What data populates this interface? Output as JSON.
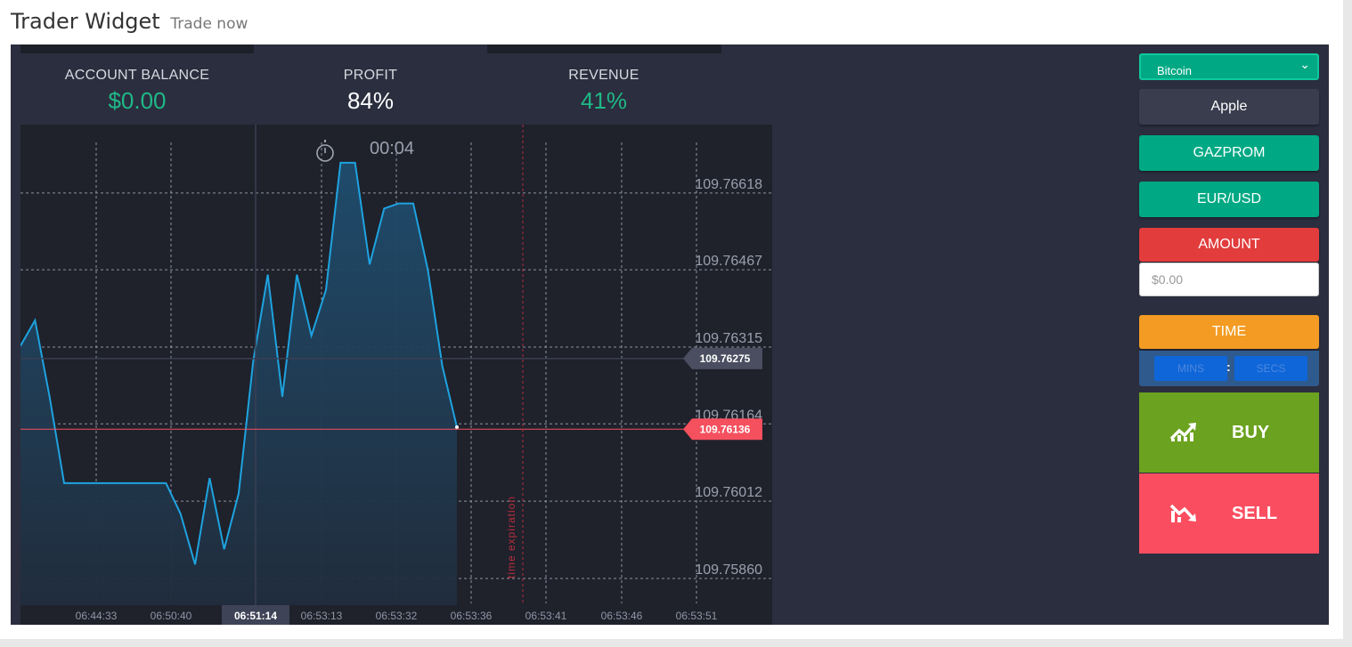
{
  "header": {
    "title": "Trader Widget",
    "subtitle": "Trade now"
  },
  "stats": {
    "account_balance": {
      "label": "ACCOUNT BALANCE",
      "value": "$0.00",
      "color": "#1fb887"
    },
    "profit": {
      "label": "PROFIT",
      "value": "84%",
      "color": "#ffffff"
    },
    "revenue": {
      "label": "REVENUE",
      "value": "41%",
      "color": "#1fb887"
    }
  },
  "timer": {
    "icon": "stopwatch-icon",
    "value": "00:04"
  },
  "chart_data": {
    "type": "area",
    "x_ticks": [
      "06:44:33",
      "06:50:40",
      "06:51:14",
      "06:53:13",
      "06:53:32",
      "06:53:36",
      "06:53:41",
      "06:53:46",
      "06:53:51"
    ],
    "highlighted_x_tick": "06:51:14",
    "y_ticks": [
      "109.76618",
      "109.76467",
      "109.76315",
      "109.76164",
      "109.76012",
      "109.75860"
    ],
    "ylim": [
      109.7579,
      109.767
    ],
    "values": [
      109.763,
      109.7635,
      109.762,
      109.7603,
      109.7603,
      109.7603,
      109.7603,
      109.7603,
      109.7603,
      109.7603,
      109.7603,
      109.7597,
      109.7587,
      109.7604,
      109.759,
      109.7601,
      109.7627,
      109.7644,
      109.762,
      109.7644,
      109.7632,
      109.7641,
      109.7666,
      109.7666,
      109.7646,
      109.7657,
      109.7658,
      109.7658,
      109.7645,
      109.7626,
      109.7614
    ],
    "price_labels": [
      {
        "value": "109.76275",
        "color": "#4b4e60"
      },
      {
        "value": "109.76136",
        "color": "#f4505e"
      }
    ],
    "current_price": 109.76136,
    "reference_price": 109.76275,
    "expiration_label": "time expiration",
    "series_color": "#1ea3e0"
  },
  "sidebar": {
    "select": {
      "selected": "Bitcoin",
      "icon": "chevron-down-icon"
    },
    "assets": [
      {
        "label": "Apple",
        "color": "#3a3d4e"
      },
      {
        "label": "GAZPROM",
        "color": "#00a984"
      },
      {
        "label": "EUR/USD",
        "color": "#00a984"
      }
    ],
    "amount": {
      "label": "AMOUNT",
      "placeholder": "$0.00",
      "color": "#e23c3c"
    },
    "time": {
      "label": "TIME",
      "mins_placeholder": "MINS",
      "separator": ":",
      "secs_placeholder": "SECS",
      "color": "#f39b22"
    },
    "buy": {
      "label": "BUY",
      "icon": "trend-up-icon",
      "color": "#6ba21f"
    },
    "sell": {
      "label": "SELL",
      "icon": "trend-down-icon",
      "color": "#fb4d60"
    }
  }
}
